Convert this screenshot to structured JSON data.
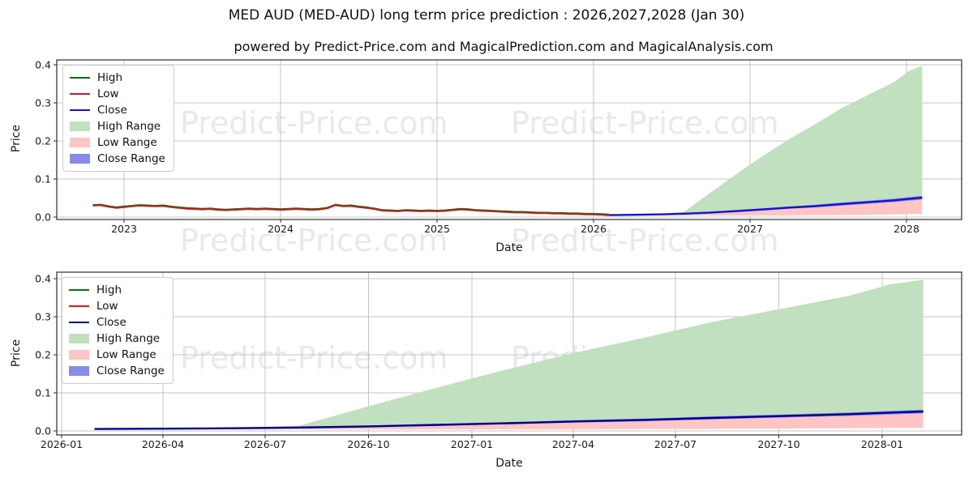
{
  "title": "MED AUD (MED-AUD) long term price prediction : 2026,2027,2028 (Jan 30)",
  "subtitle": "powered by Predict-Price.com and MagicalPrediction.com and MagicalAnalysis.com",
  "watermark_text": "Predict-Price.com",
  "colors": {
    "high_range_fill": "#c0e0c0",
    "low_range_fill": "#ffc4c4",
    "close_range_fill": "#8a8aee",
    "grid": "#c4c4c4",
    "axis": "#2b2b2b",
    "tick_text": "#1a1a1a",
    "watermark": "#e9e9e9"
  },
  "panel_colors": [
    {
      "high": "#0d6e0d",
      "low": "#bb2121",
      "close": "#1414cc"
    },
    {
      "high": "#0d6e0d",
      "low": "#e31212",
      "close": "#00008b"
    }
  ],
  "legend_items": [
    {
      "label": "High",
      "type": "line",
      "color": "high"
    },
    {
      "label": "Low",
      "type": "line",
      "color": "low"
    },
    {
      "label": "Close",
      "type": "line",
      "color": "close"
    },
    {
      "label": "High Range",
      "type": "patch",
      "color": "high_range_fill"
    },
    {
      "label": "Low Range",
      "type": "patch",
      "color": "low_range_fill"
    },
    {
      "label": "Close Range",
      "type": "patch",
      "color": "close_range_fill"
    }
  ],
  "chart_data": {
    "type": "line",
    "grid": true,
    "legend_position": "upper left",
    "series_shared": {
      "history": {
        "note": "overlapping High/Low/Close history lines, Low on top",
        "t_start": 2022.8,
        "t_step": 0.05,
        "high_offset": 0.002,
        "low_close": [
          0.03,
          0.031,
          0.027,
          0.024,
          0.026,
          0.028,
          0.03,
          0.029,
          0.028,
          0.029,
          0.026,
          0.024,
          0.022,
          0.021,
          0.02,
          0.021,
          0.019,
          0.018,
          0.019,
          0.02,
          0.021,
          0.02,
          0.021,
          0.02,
          0.019,
          0.02,
          0.021,
          0.02,
          0.019,
          0.02,
          0.023,
          0.031,
          0.028,
          0.029,
          0.026,
          0.024,
          0.021,
          0.017,
          0.016,
          0.015,
          0.017,
          0.016,
          0.015,
          0.016,
          0.015,
          0.016,
          0.018,
          0.02,
          0.019,
          0.017,
          0.016,
          0.015,
          0.014,
          0.013,
          0.012,
          0.012,
          0.011,
          0.01,
          0.01,
          0.009,
          0.009,
          0.008,
          0.008,
          0.007,
          0.007,
          0.006,
          0.005
        ]
      },
      "forecast": {
        "t": [
          2026.08,
          2026.25,
          2026.42,
          2026.58,
          2026.75,
          2026.92,
          2027.08,
          2027.25,
          2027.42,
          2027.58,
          2027.75,
          2027.92,
          2028.02,
          2028.1
        ],
        "close": [
          0.005,
          0.006,
          0.007,
          0.009,
          0.012,
          0.016,
          0.02,
          0.025,
          0.029,
          0.034,
          0.039,
          0.044,
          0.048,
          0.051
        ],
        "high_range_top": [
          0.005,
          0.006,
          0.008,
          0.014,
          0.065,
          0.115,
          0.16,
          0.205,
          0.245,
          0.285,
          0.32,
          0.355,
          0.385,
          0.397
        ],
        "low_range_bottom": [
          0.004,
          0.004,
          0.004,
          0.004,
          0.004,
          0.004,
          0.004,
          0.004,
          0.005,
          0.005,
          0.006,
          0.007,
          0.008,
          0.008
        ],
        "close_range_halfwidth": [
          0.0012,
          0.0013,
          0.0015,
          0.0018,
          0.002,
          0.0024,
          0.0028,
          0.0032,
          0.0036,
          0.004,
          0.0042,
          0.0046,
          0.005,
          0.005
        ]
      }
    },
    "panels": [
      {
        "name": "long-term-panel",
        "xlabel": "Date",
        "ylabel": "Price",
        "ylim": [
          0.0,
          0.4
        ],
        "shows": [
          "history",
          "forecast"
        ],
        "x_ticks": [
          {
            "t": 2023,
            "label": "2023"
          },
          {
            "t": 2024,
            "label": "2024"
          },
          {
            "t": 2025,
            "label": "2025"
          },
          {
            "t": 2026,
            "label": "2026"
          },
          {
            "t": 2027,
            "label": "2027"
          },
          {
            "t": 2028,
            "label": "2028"
          }
        ],
        "y_ticks": [
          {
            "v": 0.0,
            "label": "0.0"
          },
          {
            "v": 0.1,
            "label": "0.1"
          },
          {
            "v": 0.2,
            "label": "0.2"
          },
          {
            "v": 0.3,
            "label": "0.3"
          },
          {
            "v": 0.4,
            "label": "0.4"
          }
        ]
      },
      {
        "name": "forecast-zoom-panel",
        "xlabel": "Date",
        "ylabel": "Price",
        "ylim": [
          0.0,
          0.4
        ],
        "shows": [
          "forecast"
        ],
        "x_ticks": [
          {
            "t": 2026.0,
            "label": "2026-01"
          },
          {
            "t": 2026.247,
            "label": "2026-04"
          },
          {
            "t": 2026.496,
            "label": "2026-07"
          },
          {
            "t": 2026.748,
            "label": "2026-10"
          },
          {
            "t": 2027.0,
            "label": "2027-01"
          },
          {
            "t": 2027.247,
            "label": "2027-04"
          },
          {
            "t": 2027.496,
            "label": "2027-07"
          },
          {
            "t": 2027.748,
            "label": "2027-10"
          },
          {
            "t": 2028.0,
            "label": "2028-01"
          }
        ],
        "y_ticks": [
          {
            "v": 0.0,
            "label": "0.0"
          },
          {
            "v": 0.1,
            "label": "0.1"
          },
          {
            "v": 0.2,
            "label": "0.2"
          },
          {
            "v": 0.3,
            "label": "0.3"
          },
          {
            "v": 0.4,
            "label": "0.4"
          }
        ]
      }
    ]
  }
}
